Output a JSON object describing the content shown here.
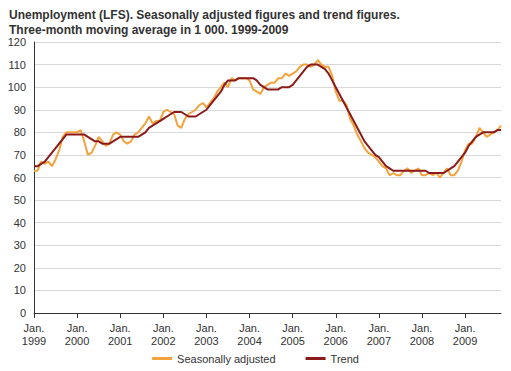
{
  "chart_data": {
    "type": "line",
    "title": "Unemployment (LFS). Seasonally adjusted figures and trend figures.",
    "subtitle": "Three-month moving average in 1 000. 1999-2009",
    "categories": [
      "Jan.\n1999",
      null,
      null,
      null,
      null,
      null,
      null,
      null,
      null,
      null,
      null,
      null,
      "Jan.\n2000",
      null,
      null,
      null,
      null,
      null,
      null,
      null,
      null,
      null,
      null,
      null,
      "Jan.\n2001",
      null,
      null,
      null,
      null,
      null,
      null,
      null,
      null,
      null,
      null,
      null,
      "Jan.\n2002",
      null,
      null,
      null,
      null,
      null,
      null,
      null,
      null,
      null,
      null,
      null,
      "Jan.\n2003",
      null,
      null,
      null,
      null,
      null,
      null,
      null,
      null,
      null,
      null,
      null,
      "Jan.\n2004",
      null,
      null,
      null,
      null,
      null,
      null,
      null,
      null,
      null,
      null,
      null,
      "Jan.\n2005",
      null,
      null,
      null,
      null,
      null,
      null,
      null,
      null,
      null,
      null,
      null,
      "Jan.\n2006",
      null,
      null,
      null,
      null,
      null,
      null,
      null,
      null,
      null,
      null,
      null,
      "Jan.\n2007",
      null,
      null,
      null,
      null,
      null,
      null,
      null,
      null,
      null,
      null,
      null,
      "Jan.\n2008",
      null,
      null,
      null,
      null,
      null,
      null,
      null,
      null,
      null,
      null,
      null,
      "Jan.\n2009",
      null,
      null,
      null,
      null,
      null,
      null,
      null,
      null,
      null,
      null
    ],
    "series": [
      {
        "name": "Seasonally adjusted",
        "color": "#f4a23c",
        "values": [
          63,
          63,
          67,
          66,
          67,
          65,
          68,
          72,
          78,
          80,
          80,
          80,
          80,
          81,
          76,
          70,
          71,
          74,
          78,
          76,
          74,
          75,
          79,
          80,
          79,
          76,
          75,
          76,
          79,
          80,
          82,
          84,
          87,
          84,
          85,
          85,
          89,
          90,
          89,
          88,
          83,
          82,
          86,
          88,
          89,
          90,
          92,
          93,
          91,
          93,
          95,
          98,
          100,
          102,
          100,
          104,
          103,
          104,
          104,
          104,
          103,
          99,
          98,
          97,
          100,
          101,
          102,
          102,
          104,
          104,
          106,
          105,
          106,
          107,
          109,
          110,
          110,
          109,
          110,
          112,
          110,
          109,
          109,
          105,
          98,
          94,
          94,
          92,
          86,
          83,
          79,
          76,
          73,
          71,
          70,
          69,
          67,
          65,
          64,
          61,
          62,
          61,
          61,
          63,
          64,
          62,
          63,
          64,
          61,
          61,
          62,
          61,
          62,
          60,
          62,
          64,
          61,
          61,
          63,
          67,
          72,
          75,
          75,
          78,
          82,
          80,
          78,
          79,
          80,
          81,
          83
        ]
      },
      {
        "name": "Trend",
        "color": "#8b1a1a",
        "values": [
          65,
          65,
          66,
          67,
          69,
          71,
          73,
          75,
          77,
          79,
          79,
          79,
          79,
          79,
          79,
          78,
          77,
          76,
          76,
          75,
          75,
          75,
          76,
          77,
          78,
          78,
          78,
          78,
          78,
          78,
          79,
          80,
          82,
          83,
          84,
          85,
          86,
          87,
          88,
          89,
          89,
          89,
          88,
          87,
          87,
          87,
          88,
          89,
          90,
          92,
          94,
          96,
          98,
          101,
          103,
          103,
          103,
          104,
          104,
          104,
          104,
          104,
          103,
          101,
          100,
          99,
          99,
          99,
          99,
          100,
          100,
          100,
          101,
          103,
          105,
          107,
          109,
          110,
          110,
          110,
          109,
          108,
          106,
          103,
          100,
          97,
          94,
          91,
          88,
          85,
          82,
          79,
          76,
          74,
          72,
          70,
          69,
          67,
          65,
          64,
          63,
          63,
          63,
          63,
          63,
          63,
          63,
          63,
          63,
          63,
          62,
          62,
          62,
          62,
          62,
          63,
          64,
          65,
          67,
          69,
          71,
          74,
          76,
          78,
          79,
          80,
          80,
          80,
          80,
          81,
          81
        ]
      }
    ],
    "ylim": [
      0,
      120
    ],
    "yticks": [
      0,
      10,
      20,
      30,
      40,
      50,
      60,
      70,
      80,
      90,
      100,
      110,
      120
    ],
    "grid": true,
    "legend": "bottom"
  }
}
